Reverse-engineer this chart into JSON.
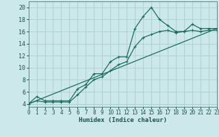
{
  "bg_color": "#cce8e8",
  "grid_color": "#aacccc",
  "line_color": "#1a6b5a",
  "xlabel": "Humidex (Indice chaleur)",
  "xlim": [
    0,
    23
  ],
  "ylim": [
    3.5,
    21
  ],
  "xticks": [
    0,
    1,
    2,
    3,
    4,
    5,
    6,
    7,
    8,
    9,
    10,
    11,
    12,
    13,
    14,
    15,
    16,
    17,
    18,
    19,
    20,
    21,
    22,
    23
  ],
  "yticks": [
    4,
    6,
    8,
    10,
    12,
    14,
    16,
    18,
    20
  ],
  "line1_x": [
    0,
    1,
    2,
    3,
    4,
    5,
    6,
    7,
    8,
    9,
    10,
    11,
    12,
    13,
    14,
    15,
    16,
    17,
    18,
    19,
    20,
    21,
    22,
    23
  ],
  "line1_y": [
    4.0,
    5.2,
    4.5,
    4.5,
    4.5,
    4.5,
    6.5,
    7.2,
    9.0,
    9.0,
    11.0,
    11.8,
    11.8,
    16.5,
    18.5,
    20.0,
    18.0,
    17.0,
    16.0,
    16.0,
    17.2,
    16.5,
    16.5,
    16.5
  ],
  "line2_x": [
    0,
    1,
    2,
    3,
    4,
    5,
    6,
    7,
    8,
    9,
    10,
    11,
    12,
    13,
    14,
    15,
    16,
    17,
    18,
    19,
    20,
    21,
    22,
    23
  ],
  "line2_y": [
    4.0,
    4.5,
    4.3,
    4.3,
    4.3,
    4.3,
    5.5,
    6.8,
    8.0,
    8.5,
    9.5,
    10.5,
    11.0,
    13.5,
    15.0,
    15.5,
    16.0,
    16.2,
    15.8,
    16.0,
    16.2,
    16.0,
    16.2,
    16.2
  ],
  "line3_x": [
    0,
    23
  ],
  "line3_y": [
    4.0,
    16.5
  ]
}
